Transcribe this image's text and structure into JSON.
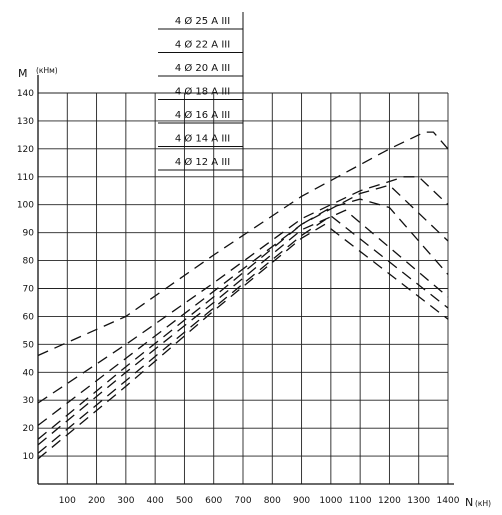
{
  "chart_data": {
    "type": "line",
    "xlabel": "N",
    "xunit": "(кН)",
    "ylabel": "M",
    "yunit": "(кНм)",
    "xlim": [
      0,
      1400
    ],
    "ylim": [
      0,
      140
    ],
    "grid": true,
    "x_ticks": [
      100,
      200,
      300,
      400,
      500,
      600,
      700,
      800,
      900,
      1000,
      1100,
      1200,
      1300,
      1400
    ],
    "y_ticks": [
      10,
      20,
      30,
      40,
      50,
      60,
      70,
      80,
      90,
      100,
      110,
      120,
      130,
      140
    ],
    "legend_position": "top-center",
    "series": [
      {
        "name": "4 Ø 25 A III",
        "points": [
          [
            0,
            46
          ],
          [
            300,
            60
          ],
          [
            600,
            82
          ],
          [
            900,
            103
          ],
          [
            1200,
            120
          ],
          [
            1320,
            126
          ],
          [
            1350,
            126
          ],
          [
            1400,
            120
          ]
        ]
      },
      {
        "name": "4 Ø 22 A III",
        "points": [
          [
            0,
            29
          ],
          [
            300,
            50
          ],
          [
            600,
            72
          ],
          [
            900,
            95
          ],
          [
            1100,
            105
          ],
          [
            1250,
            110
          ],
          [
            1300,
            110
          ],
          [
            1400,
            100
          ]
        ]
      },
      {
        "name": "4 Ø 20 A III",
        "points": [
          [
            0,
            21
          ],
          [
            300,
            45
          ],
          [
            600,
            69
          ],
          [
            900,
            93
          ],
          [
            1100,
            104
          ],
          [
            1200,
            107
          ],
          [
            1400,
            87
          ]
        ]
      },
      {
        "name": "4 Ø 18 A III",
        "points": [
          [
            0,
            16
          ],
          [
            300,
            42
          ],
          [
            600,
            67
          ],
          [
            900,
            93
          ],
          [
            1000,
            99
          ],
          [
            1100,
            102
          ],
          [
            1200,
            99
          ],
          [
            1400,
            75
          ]
        ]
      },
      {
        "name": "4 Ø 16 A III",
        "points": [
          [
            0,
            14
          ],
          [
            300,
            40
          ],
          [
            600,
            65
          ],
          [
            900,
            91
          ],
          [
            1050,
            98
          ],
          [
            1400,
            67
          ]
        ]
      },
      {
        "name": "4 Ø 14 A III",
        "points": [
          [
            0,
            11
          ],
          [
            300,
            37
          ],
          [
            600,
            63
          ],
          [
            900,
            89
          ],
          [
            1000,
            96
          ],
          [
            1400,
            63
          ]
        ]
      },
      {
        "name": "4 Ø 12 A III",
        "points": [
          [
            0,
            9
          ],
          [
            300,
            35
          ],
          [
            600,
            62
          ],
          [
            900,
            88
          ],
          [
            980,
            93
          ],
          [
            1400,
            59
          ]
        ]
      }
    ]
  }
}
